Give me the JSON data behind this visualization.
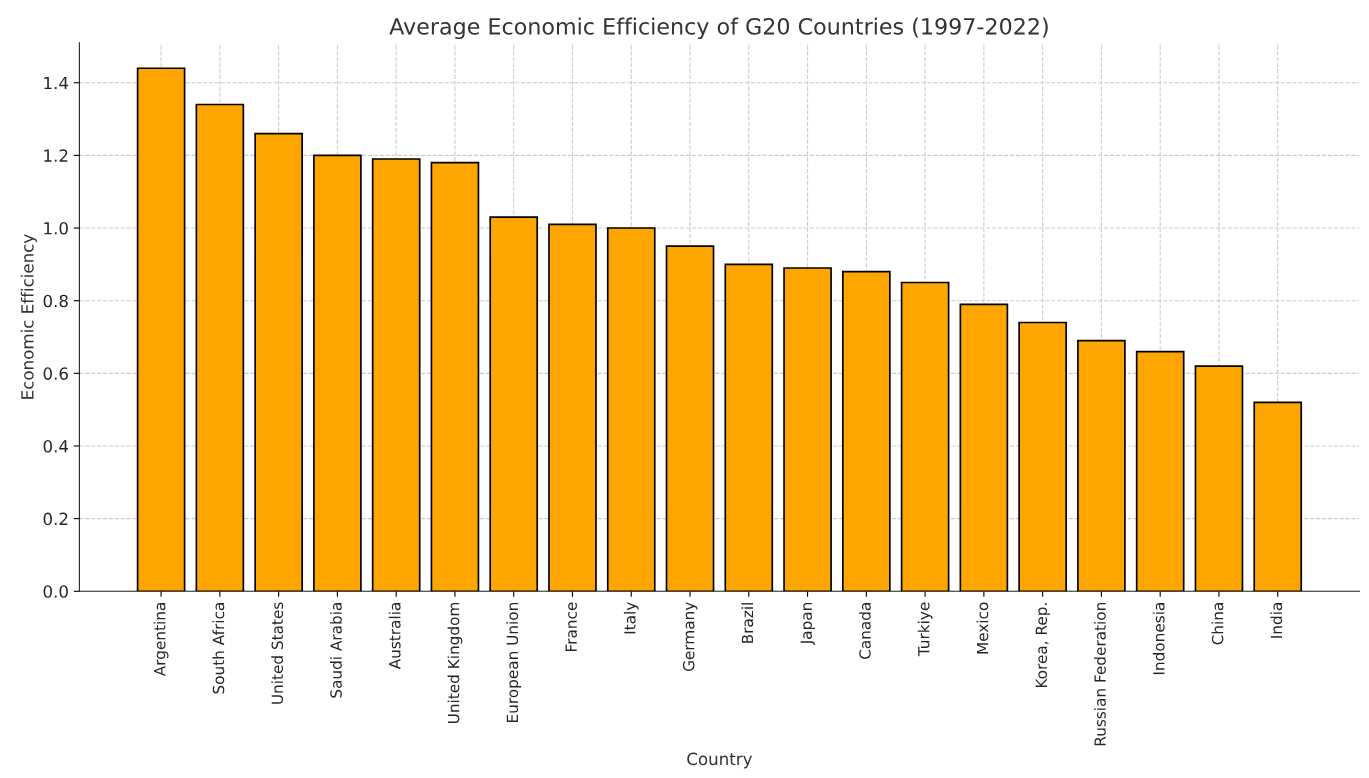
{
  "chart_data": {
    "type": "bar",
    "title": "Average Economic Efficiency of G20 Countries (1997-2022)",
    "xlabel": "Country",
    "ylabel": "Economic Efficiency",
    "categories": [
      "Argentina",
      "South Africa",
      "United States",
      "Saudi Arabia",
      "Australia",
      "United Kingdom",
      "European Union",
      "France",
      "Italy",
      "Germany",
      "Brazil",
      "Japan",
      "Canada",
      "Turkiye",
      "Mexico",
      "Korea, Rep.",
      "Russian Federation",
      "Indonesia",
      "China",
      "India"
    ],
    "values": [
      1.44,
      1.34,
      1.26,
      1.2,
      1.19,
      1.18,
      1.03,
      1.01,
      1.0,
      0.95,
      0.9,
      0.89,
      0.88,
      0.85,
      0.79,
      0.74,
      0.69,
      0.66,
      0.62,
      0.52
    ],
    "color": "#ffa500",
    "ylim": [
      0,
      1.51
    ],
    "yticks": [
      {
        "value": 0,
        "label": "0.0"
      },
      0.2,
      0.4,
      0.6,
      0.8,
      {
        "value": 1,
        "label": "1.0"
      },
      1.2,
      1.4
    ],
    "grid": true
  }
}
